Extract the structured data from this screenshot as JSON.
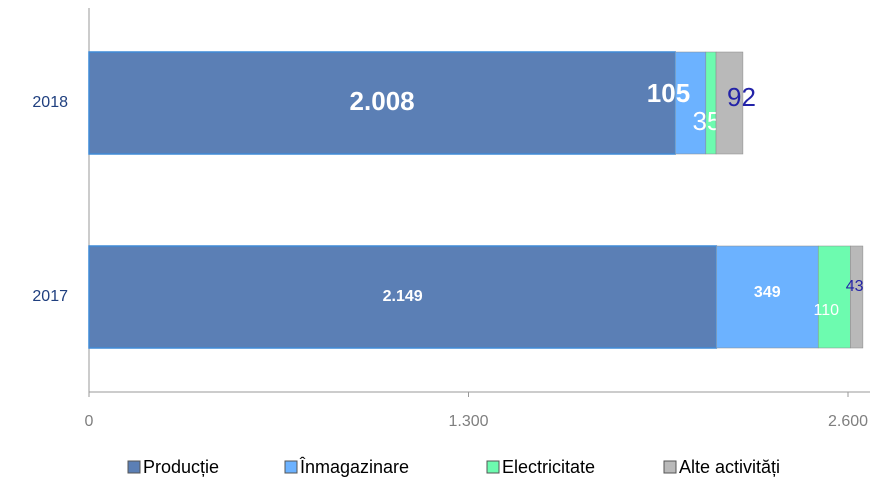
{
  "chart_data": {
    "type": "stacked-barh",
    "categories": [
      "2018",
      "2017"
    ],
    "series": [
      {
        "name": "Producție",
        "color": "#5b7fb5",
        "values": [
          2008,
          2149
        ],
        "value_labels": [
          "2.008",
          "2.149"
        ]
      },
      {
        "name": "Înmagazinare",
        "color": "#6cb2ff",
        "values": [
          105,
          349
        ]
      },
      {
        "name": "Electricitate",
        "color": "#6dfbaf",
        "values": [
          35,
          110
        ]
      },
      {
        "name": "Alte activități",
        "color": "#b9b9b9",
        "values": [
          92,
          43
        ]
      }
    ],
    "xlim": [
      0,
      2600
    ],
    "xticks": [
      0,
      {
        "value": 1300,
        "label": "1.300"
      },
      {
        "value": 2600,
        "label": "2.600"
      }
    ],
    "legend": "bottom"
  }
}
